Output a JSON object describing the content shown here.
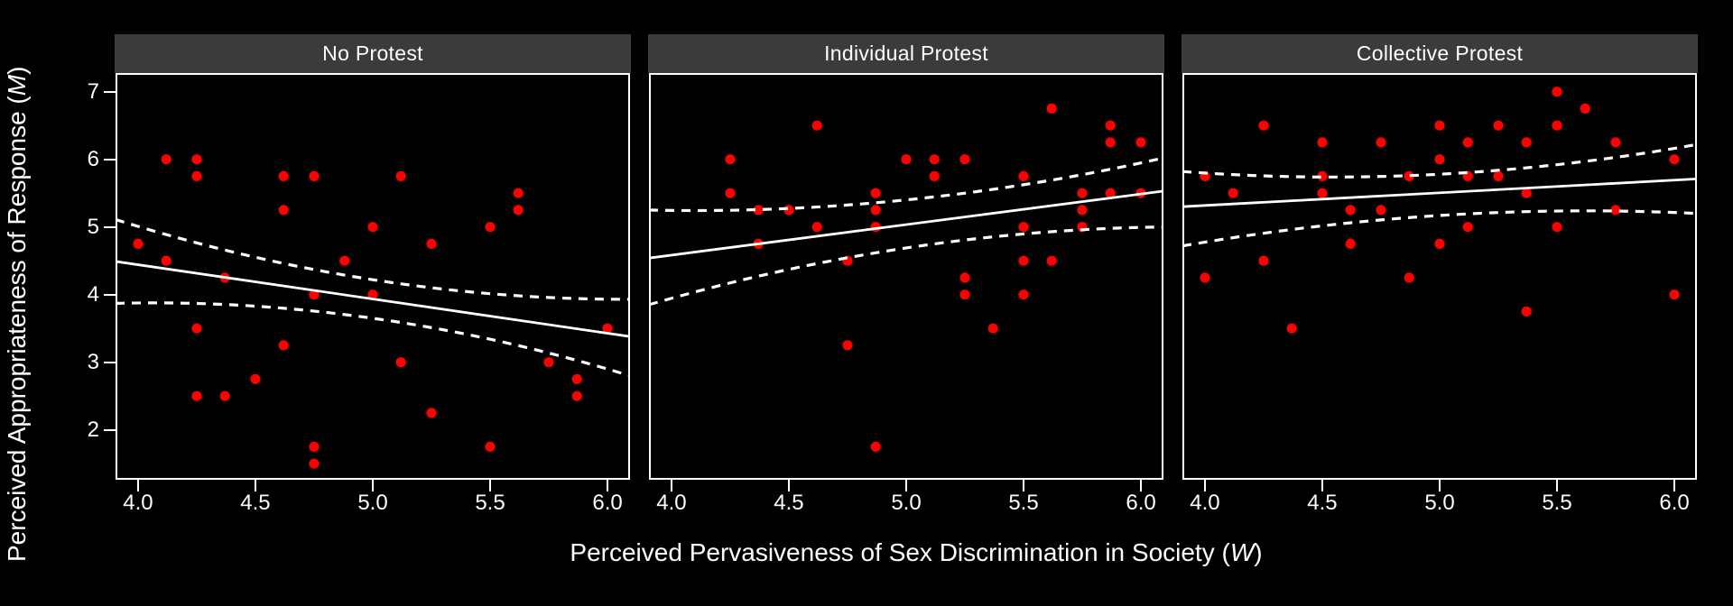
{
  "figure": {
    "background": "#000000",
    "panel_background": "#000000",
    "panel_border_color": "#ffffff",
    "header_bg": "#3b3b3b",
    "header_text_color": "#ffffff",
    "point_color": "#ff0000",
    "line_color": "#ffffff"
  },
  "x_axis": {
    "title_prefix": "Perceived Pervasiveness of Sex Discrimination in Society (",
    "title_italic": "W",
    "title_suffix": ")",
    "tick_labels": [
      "4.0",
      "4.5",
      "5.0",
      "5.5",
      "6.0"
    ],
    "tick_values": [
      4.0,
      4.5,
      5.0,
      5.5,
      6.0
    ]
  },
  "y_axis": {
    "title_prefix": "Perceived Appropriateness of Response (",
    "title_italic": "M",
    "title_suffix": ")",
    "tick_labels": [
      "7",
      "6",
      "5",
      "4",
      "3",
      "2"
    ],
    "tick_values": [
      7,
      6,
      5,
      4,
      3,
      2
    ]
  },
  "chart_data": [
    {
      "type": "scatter",
      "title": "No Protest",
      "x_range": [
        3.904,
        6.096
      ],
      "y_range": [
        1.263,
        7.276
      ],
      "grid": false,
      "points": [
        [
          4.12,
          6.0
        ],
        [
          4.25,
          6.0
        ],
        [
          4.25,
          5.75
        ],
        [
          4.62,
          5.75
        ],
        [
          4.75,
          5.75
        ],
        [
          5.12,
          5.75
        ],
        [
          5.62,
          5.5
        ],
        [
          4.62,
          5.25
        ],
        [
          5.62,
          5.25
        ],
        [
          5.0,
          5.0
        ],
        [
          5.5,
          5.0
        ],
        [
          4.0,
          4.75
        ],
        [
          5.25,
          4.75
        ],
        [
          4.12,
          4.5
        ],
        [
          4.88,
          4.5
        ],
        [
          4.37,
          4.25
        ],
        [
          4.75,
          4.0
        ],
        [
          5.0,
          4.0
        ],
        [
          4.25,
          3.5
        ],
        [
          6.0,
          3.5
        ],
        [
          4.62,
          3.25
        ],
        [
          5.12,
          3.0
        ],
        [
          5.75,
          3.0
        ],
        [
          4.5,
          2.75
        ],
        [
          5.87,
          2.75
        ],
        [
          4.25,
          2.5
        ],
        [
          4.37,
          2.5
        ],
        [
          5.87,
          2.5
        ],
        [
          5.25,
          2.25
        ],
        [
          4.75,
          1.75
        ],
        [
          5.5,
          1.75
        ],
        [
          4.75,
          1.5
        ]
      ],
      "fit_line": {
        "x": [
          3.904,
          6.096
        ],
        "y": [
          4.49,
          3.38
        ]
      },
      "ci_upper": {
        "x": [
          3.904,
          5.0,
          6.096
        ],
        "y": [
          5.11,
          4.22,
          3.93
        ]
      },
      "ci_lower": {
        "x": [
          3.904,
          5.0,
          6.096
        ],
        "y": [
          3.87,
          3.65,
          2.8
        ]
      }
    },
    {
      "type": "scatter",
      "title": "Individual Protest",
      "x_range": [
        3.904,
        6.096
      ],
      "y_range": [
        1.263,
        7.276
      ],
      "grid": false,
      "points": [
        [
          5.62,
          6.75
        ],
        [
          4.62,
          6.5
        ],
        [
          5.87,
          6.5
        ],
        [
          5.87,
          6.25
        ],
        [
          6.0,
          6.25
        ],
        [
          4.25,
          6.0
        ],
        [
          5.0,
          6.0
        ],
        [
          5.12,
          6.0
        ],
        [
          5.25,
          6.0
        ],
        [
          5.12,
          5.75
        ],
        [
          5.5,
          5.75
        ],
        [
          4.25,
          5.5
        ],
        [
          4.87,
          5.5
        ],
        [
          5.75,
          5.5
        ],
        [
          5.87,
          5.5
        ],
        [
          6.0,
          5.5
        ],
        [
          4.37,
          5.25
        ],
        [
          4.5,
          5.25
        ],
        [
          4.87,
          5.25
        ],
        [
          5.75,
          5.25
        ],
        [
          4.62,
          5.0
        ],
        [
          4.87,
          5.0
        ],
        [
          5.5,
          5.0
        ],
        [
          5.75,
          5.0
        ],
        [
          4.37,
          4.75
        ],
        [
          4.75,
          4.5
        ],
        [
          5.5,
          4.5
        ],
        [
          5.62,
          4.5
        ],
        [
          5.25,
          4.25
        ],
        [
          5.25,
          4.0
        ],
        [
          5.5,
          4.0
        ],
        [
          5.37,
          3.5
        ],
        [
          4.75,
          3.25
        ],
        [
          4.87,
          1.75
        ]
      ],
      "fit_line": {
        "x": [
          3.904,
          6.096
        ],
        "y": [
          4.54,
          5.53
        ]
      },
      "ci_upper": {
        "x": [
          3.904,
          5.0,
          6.096
        ],
        "y": [
          5.25,
          5.4,
          6.02
        ]
      },
      "ci_lower": {
        "x": [
          3.904,
          5.0,
          6.096
        ],
        "y": [
          3.85,
          4.69,
          5.0
        ]
      }
    },
    {
      "type": "scatter",
      "title": "Collective Protest",
      "x_range": [
        3.904,
        6.096
      ],
      "y_range": [
        1.263,
        7.276
      ],
      "grid": false,
      "points": [
        [
          5.5,
          7.0
        ],
        [
          5.62,
          6.75
        ],
        [
          4.25,
          6.5
        ],
        [
          5.0,
          6.5
        ],
        [
          5.25,
          6.5
        ],
        [
          5.5,
          6.5
        ],
        [
          4.5,
          6.25
        ],
        [
          4.75,
          6.25
        ],
        [
          5.12,
          6.25
        ],
        [
          5.37,
          6.25
        ],
        [
          5.75,
          6.25
        ],
        [
          5.0,
          6.0
        ],
        [
          6.0,
          6.0
        ],
        [
          4.0,
          5.75
        ],
        [
          4.5,
          5.75
        ],
        [
          4.87,
          5.75
        ],
        [
          5.12,
          5.75
        ],
        [
          5.25,
          5.75
        ],
        [
          4.12,
          5.5
        ],
        [
          4.5,
          5.5
        ],
        [
          5.37,
          5.5
        ],
        [
          4.62,
          5.25
        ],
        [
          4.75,
          5.25
        ],
        [
          5.75,
          5.25
        ],
        [
          5.12,
          5.0
        ],
        [
          5.5,
          5.0
        ],
        [
          4.62,
          4.75
        ],
        [
          5.0,
          4.75
        ],
        [
          4.25,
          4.5
        ],
        [
          4.0,
          4.25
        ],
        [
          4.87,
          4.25
        ],
        [
          6.0,
          4.0
        ],
        [
          5.37,
          3.75
        ],
        [
          4.37,
          3.5
        ]
      ],
      "fit_line": {
        "x": [
          3.904,
          6.096
        ],
        "y": [
          5.3,
          5.71
        ]
      },
      "ci_upper": {
        "x": [
          3.904,
          5.0,
          6.096
        ],
        "y": [
          5.82,
          5.78,
          6.22
        ]
      },
      "ci_lower": {
        "x": [
          3.904,
          5.0,
          6.096
        ],
        "y": [
          4.72,
          5.17,
          5.2
        ]
      }
    }
  ]
}
